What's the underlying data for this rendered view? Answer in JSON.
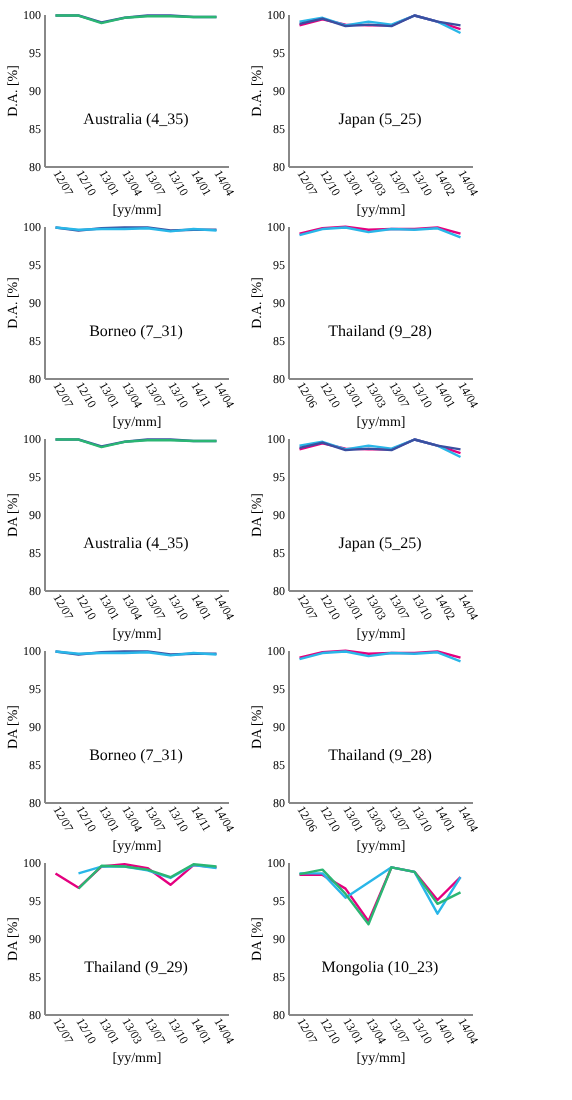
{
  "chart_data": [
    {
      "type": "line",
      "categories": [
        "12/07",
        "12/10",
        "13/01",
        "13/04",
        "13/07",
        "13/10",
        "14/01",
        "14/04"
      ],
      "xlabel": "[yy/mm]",
      "ylabel": "D.A. [%]",
      "ylim": [
        80,
        100
      ],
      "yticks": [
        80,
        85,
        90,
        95,
        100
      ],
      "annotations": [
        "Australia (4_35)"
      ],
      "series": [
        {
          "color": "#3a4fa0",
          "values": [
            99.8,
            99.8,
            98.9,
            99.5,
            99.8,
            99.8,
            99.6,
            99.6
          ]
        },
        {
          "color": "#2bb673",
          "values": [
            99.8,
            99.8,
            98.8,
            99.5,
            99.7,
            99.7,
            99.6,
            99.6
          ]
        }
      ]
    },
    {
      "type": "line",
      "categories": [
        "12/07",
        "12/10",
        "13/01",
        "13/03",
        "13/07",
        "13/10",
        "14/02",
        "14/04"
      ],
      "xlabel": "[yy/mm]",
      "ylabel": "D.A. [%]",
      "ylim": [
        80,
        100
      ],
      "yticks": [
        80,
        85,
        90,
        95,
        100
      ],
      "annotations": [
        "Japan (5_25)"
      ],
      "series": [
        {
          "color": "#e4007f",
          "values": [
            98.5,
            99.3,
            98.6,
            98.5,
            98.5,
            99.8,
            99.0,
            98.0
          ]
        },
        {
          "color": "#29b6e8",
          "values": [
            99.0,
            99.5,
            98.5,
            99.0,
            98.6,
            99.8,
            99.0,
            97.5
          ]
        },
        {
          "color": "#3a4fa0",
          "values": [
            98.7,
            99.4,
            98.4,
            98.6,
            98.4,
            99.8,
            99.0,
            98.5
          ]
        }
      ]
    },
    {
      "type": "line",
      "categories": [
        "12/07",
        "12/10",
        "13/01",
        "13/04",
        "13/07",
        "13/10",
        "14/11",
        "14/04"
      ],
      "xlabel": "[yy/mm]",
      "ylabel": "D.A. [%]",
      "ylim": [
        80,
        100
      ],
      "yticks": [
        80,
        85,
        90,
        95,
        100
      ],
      "annotations": [
        "Borneo (7_31)"
      ],
      "series": [
        {
          "color": "#3a4fa0",
          "values": [
            99.8,
            99.4,
            99.7,
            99.8,
            99.8,
            99.4,
            99.5,
            99.5
          ]
        },
        {
          "color": "#29b6e8",
          "values": [
            99.8,
            99.5,
            99.6,
            99.6,
            99.7,
            99.3,
            99.6,
            99.4
          ]
        }
      ]
    },
    {
      "type": "line",
      "categories": [
        "12/06",
        "12/10",
        "13/01",
        "13/03",
        "13/07",
        "13/10",
        "14/01",
        "14/04"
      ],
      "xlabel": "[yy/mm]",
      "ylabel": "D.A. [%]",
      "ylim": [
        80,
        100
      ],
      "yticks": [
        80,
        85,
        90,
        95,
        100
      ],
      "annotations": [
        "Thailand (9_28)"
      ],
      "series": [
        {
          "color": "#e4007f",
          "values": [
            99.0,
            99.7,
            99.9,
            99.5,
            99.6,
            99.6,
            99.8,
            99.0
          ]
        },
        {
          "color": "#29b6e8",
          "values": [
            98.8,
            99.6,
            99.8,
            99.2,
            99.6,
            99.5,
            99.7,
            98.5
          ]
        }
      ]
    },
    {
      "type": "line",
      "categories": [
        "12/07",
        "12/10",
        "13/01",
        "13/04",
        "13/07",
        "13/10",
        "14/01",
        "14/04"
      ],
      "xlabel": "[yy/mm]",
      "ylabel": "DA [%]",
      "ylim": [
        80,
        100
      ],
      "yticks": [
        80,
        85,
        90,
        95,
        100
      ],
      "annotations": [
        "Australia (4_35)"
      ],
      "series": [
        {
          "color": "#3a4fa0",
          "values": [
            99.8,
            99.8,
            98.9,
            99.5,
            99.8,
            99.8,
            99.6,
            99.6
          ]
        },
        {
          "color": "#2bb673",
          "values": [
            99.8,
            99.8,
            98.8,
            99.5,
            99.7,
            99.7,
            99.6,
            99.6
          ]
        }
      ]
    },
    {
      "type": "line",
      "categories": [
        "12/07",
        "12/10",
        "13/01",
        "13/03",
        "13/07",
        "13/10",
        "14/02",
        "14/04"
      ],
      "xlabel": "[yy/mm]",
      "ylabel": "DA [%]",
      "ylim": [
        80,
        100
      ],
      "yticks": [
        80,
        85,
        90,
        95,
        100
      ],
      "annotations": [
        "Japan (5_25)"
      ],
      "series": [
        {
          "color": "#e4007f",
          "values": [
            98.5,
            99.3,
            98.6,
            98.5,
            98.5,
            99.8,
            99.0,
            98.0
          ]
        },
        {
          "color": "#29b6e8",
          "values": [
            99.0,
            99.5,
            98.5,
            99.0,
            98.6,
            99.8,
            99.0,
            97.5
          ]
        },
        {
          "color": "#3a4fa0",
          "values": [
            98.7,
            99.4,
            98.4,
            98.6,
            98.4,
            99.8,
            99.0,
            98.5
          ]
        }
      ]
    },
    {
      "type": "line",
      "categories": [
        "12/07",
        "12/10",
        "13/01",
        "13/04",
        "13/07",
        "13/10",
        "14/11",
        "14/04"
      ],
      "xlabel": "[yy/mm]",
      "ylabel": "DA [%]",
      "ylim": [
        80,
        100
      ],
      "yticks": [
        80,
        85,
        90,
        95,
        100
      ],
      "annotations": [
        "Borneo (7_31)"
      ],
      "series": [
        {
          "color": "#3a4fa0",
          "values": [
            99.8,
            99.4,
            99.7,
            99.8,
            99.8,
            99.4,
            99.5,
            99.5
          ]
        },
        {
          "color": "#29b6e8",
          "values": [
            99.8,
            99.5,
            99.6,
            99.6,
            99.7,
            99.3,
            99.6,
            99.4
          ]
        }
      ]
    },
    {
      "type": "line",
      "categories": [
        "12/06",
        "12/10",
        "13/01",
        "13/03",
        "13/07",
        "13/10",
        "14/01",
        "14/04"
      ],
      "xlabel": "[yy/mm]",
      "ylabel": "DA [%]",
      "ylim": [
        80,
        100
      ],
      "yticks": [
        80,
        85,
        90,
        95,
        100
      ],
      "annotations": [
        "Thailand (9_28)"
      ],
      "series": [
        {
          "color": "#e4007f",
          "values": [
            99.0,
            99.7,
            99.9,
            99.5,
            99.6,
            99.6,
            99.8,
            99.0
          ]
        },
        {
          "color": "#29b6e8",
          "values": [
            98.8,
            99.6,
            99.8,
            99.2,
            99.6,
            99.5,
            99.7,
            98.5
          ]
        }
      ]
    },
    {
      "type": "line",
      "categories": [
        "12/07",
        "12/10",
        "13/01",
        "13/03",
        "13/07",
        "13/10",
        "14/01",
        "14/04"
      ],
      "xlabel": "[yy/mm]",
      "ylabel": "DA [%]",
      "ylim": [
        80,
        100
      ],
      "yticks": [
        80,
        85,
        90,
        95,
        100
      ],
      "annotations": [
        "Thailand (9_29)"
      ],
      "series": [
        {
          "color": "#e4007f",
          "values": [
            98.5,
            96.6,
            99.4,
            99.7,
            99.2,
            97.0,
            99.6,
            99.3
          ]
        },
        {
          "color": "#29b6e8",
          "values": [
            null,
            98.5,
            99.4,
            99.4,
            98.9,
            97.9,
            99.6,
            99.2
          ]
        },
        {
          "color": "#2bb673",
          "values": [
            null,
            96.5,
            99.5,
            99.4,
            99.0,
            98.0,
            99.7,
            99.4
          ]
        }
      ]
    },
    {
      "type": "line",
      "categories": [
        "12/07",
        "12/10",
        "13/01",
        "13/04",
        "13/07",
        "13/10",
        "14/01",
        "14/04"
      ],
      "xlabel": "[yy/mm]",
      "ylabel": "DA [%]",
      "ylim": [
        80,
        100
      ],
      "yticks": [
        80,
        85,
        90,
        95,
        100
      ],
      "annotations": [
        "Mongolia (10_23)"
      ],
      "series": [
        {
          "color": "#e4007f",
          "values": [
            98.3,
            98.3,
            96.5,
            92.2,
            99.3,
            98.7,
            95.0,
            98.0
          ]
        },
        {
          "color": "#29b6e8",
          "values": [
            98.5,
            98.5,
            95.3,
            97.3,
            99.3,
            98.7,
            93.2,
            98.0
          ]
        },
        {
          "color": "#2bb673",
          "values": [
            98.4,
            99.0,
            95.8,
            91.8,
            99.3,
            98.7,
            94.5,
            96.0
          ]
        }
      ]
    }
  ]
}
